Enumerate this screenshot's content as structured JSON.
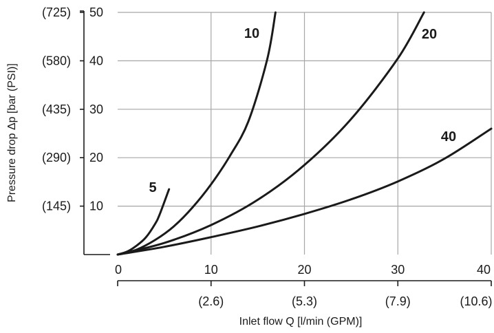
{
  "chart_data": {
    "type": "line",
    "xlabel": "Inlet flow Q [l/min (GPM)]",
    "ylabel": "Pressure drop Δp [bar (PSI)]",
    "xlim": [
      0,
      40
    ],
    "ylim": [
      0,
      50
    ],
    "grid": true,
    "x_ticks": [
      "0",
      "10",
      "20",
      "30",
      "40"
    ],
    "x_ticks_secondary": [
      "(2.6)",
      "(5.3)",
      "(7.9)",
      "(10.6)"
    ],
    "y_ticks": [
      "10",
      "20",
      "30",
      "40",
      "50"
    ],
    "y_ticks_secondary": [
      "(145)",
      "(290)",
      "(435)",
      "(580)",
      "(725)"
    ],
    "series": [
      {
        "name": "5",
        "x": [
          0,
          1,
          2,
          3,
          4,
          4.5,
          5.5
        ],
        "y": [
          0,
          0.6,
          1.8,
          3.5,
          6.3,
          8.3,
          13.5
        ]
      },
      {
        "name": "10",
        "x": [
          0,
          2,
          4,
          6,
          8,
          10,
          12,
          14,
          16,
          16.9
        ],
        "y": [
          0,
          1.0,
          3.0,
          5.8,
          9.7,
          14.5,
          20.3,
          27.5,
          40.2,
          50
        ]
      },
      {
        "name": "20",
        "x": [
          0,
          5,
          10,
          15,
          20,
          25,
          30,
          32.8
        ],
        "y": [
          0,
          2.4,
          6.1,
          11.3,
          18.5,
          28.0,
          40.5,
          50
        ]
      },
      {
        "name": "40",
        "x": [
          0,
          5,
          10,
          15,
          20,
          25,
          30,
          35,
          40
        ],
        "y": [
          0,
          1.6,
          3.6,
          5.8,
          8.4,
          11.4,
          15.1,
          19.8,
          26.0
        ]
      }
    ],
    "colors": {
      "line": "#1a1a1a",
      "grid": "#a6a6a6",
      "axis": "#1a1a1a"
    }
  }
}
